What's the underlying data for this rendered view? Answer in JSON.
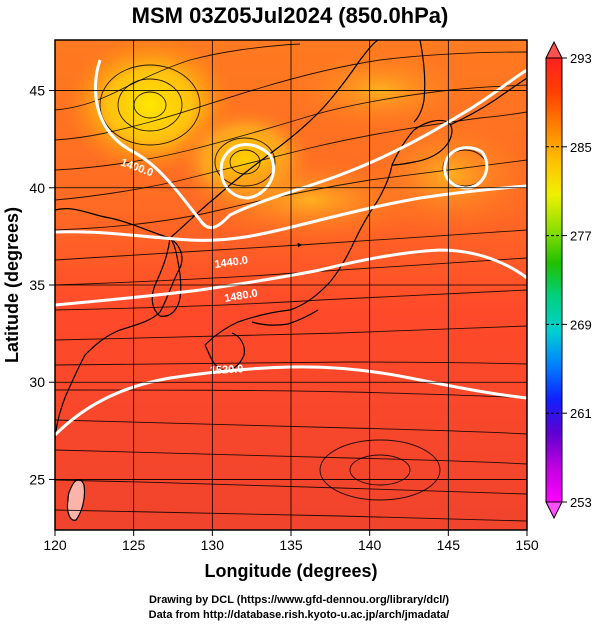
{
  "title": "MSM 03Z05Jul2024 (850.0hPa)",
  "x_axis": {
    "label": "Longitude (degrees)",
    "ticks": [
      120,
      125,
      130,
      135,
      140,
      145,
      150
    ],
    "range": [
      120,
      150
    ]
  },
  "y_axis": {
    "label": "Latitude  (degrees)",
    "ticks": [
      25,
      30,
      35,
      40,
      45
    ],
    "range": [
      22.4,
      47.6
    ]
  },
  "colorbar": {
    "ticks": [
      253,
      261,
      269,
      277,
      285,
      293
    ],
    "range": [
      253,
      293
    ],
    "colors": [
      "#ff00ff",
      "#c000e0",
      "#6000d0",
      "#1020ff",
      "#0080ff",
      "#00d0d0",
      "#00d080",
      "#20c000",
      "#90e000",
      "#f0f000",
      "#ffc000",
      "#ff8000",
      "#ff4000",
      "#ff2020"
    ]
  },
  "contours": [
    {
      "label": "1400.0",
      "value": 1400.0
    },
    {
      "label": "1440.0",
      "value": 1440.0
    },
    {
      "label": "1480.0",
      "value": 1480.0
    },
    {
      "label": "1520.0",
      "value": 1520.0
    }
  ],
  "credits": {
    "line1": "Drawing by DCL (https://www.gfd-dennou.org/library/dcl/)",
    "line2": "Data from http://database.rish.kyoto-u.ac.jp/arch/jmadata/"
  }
}
